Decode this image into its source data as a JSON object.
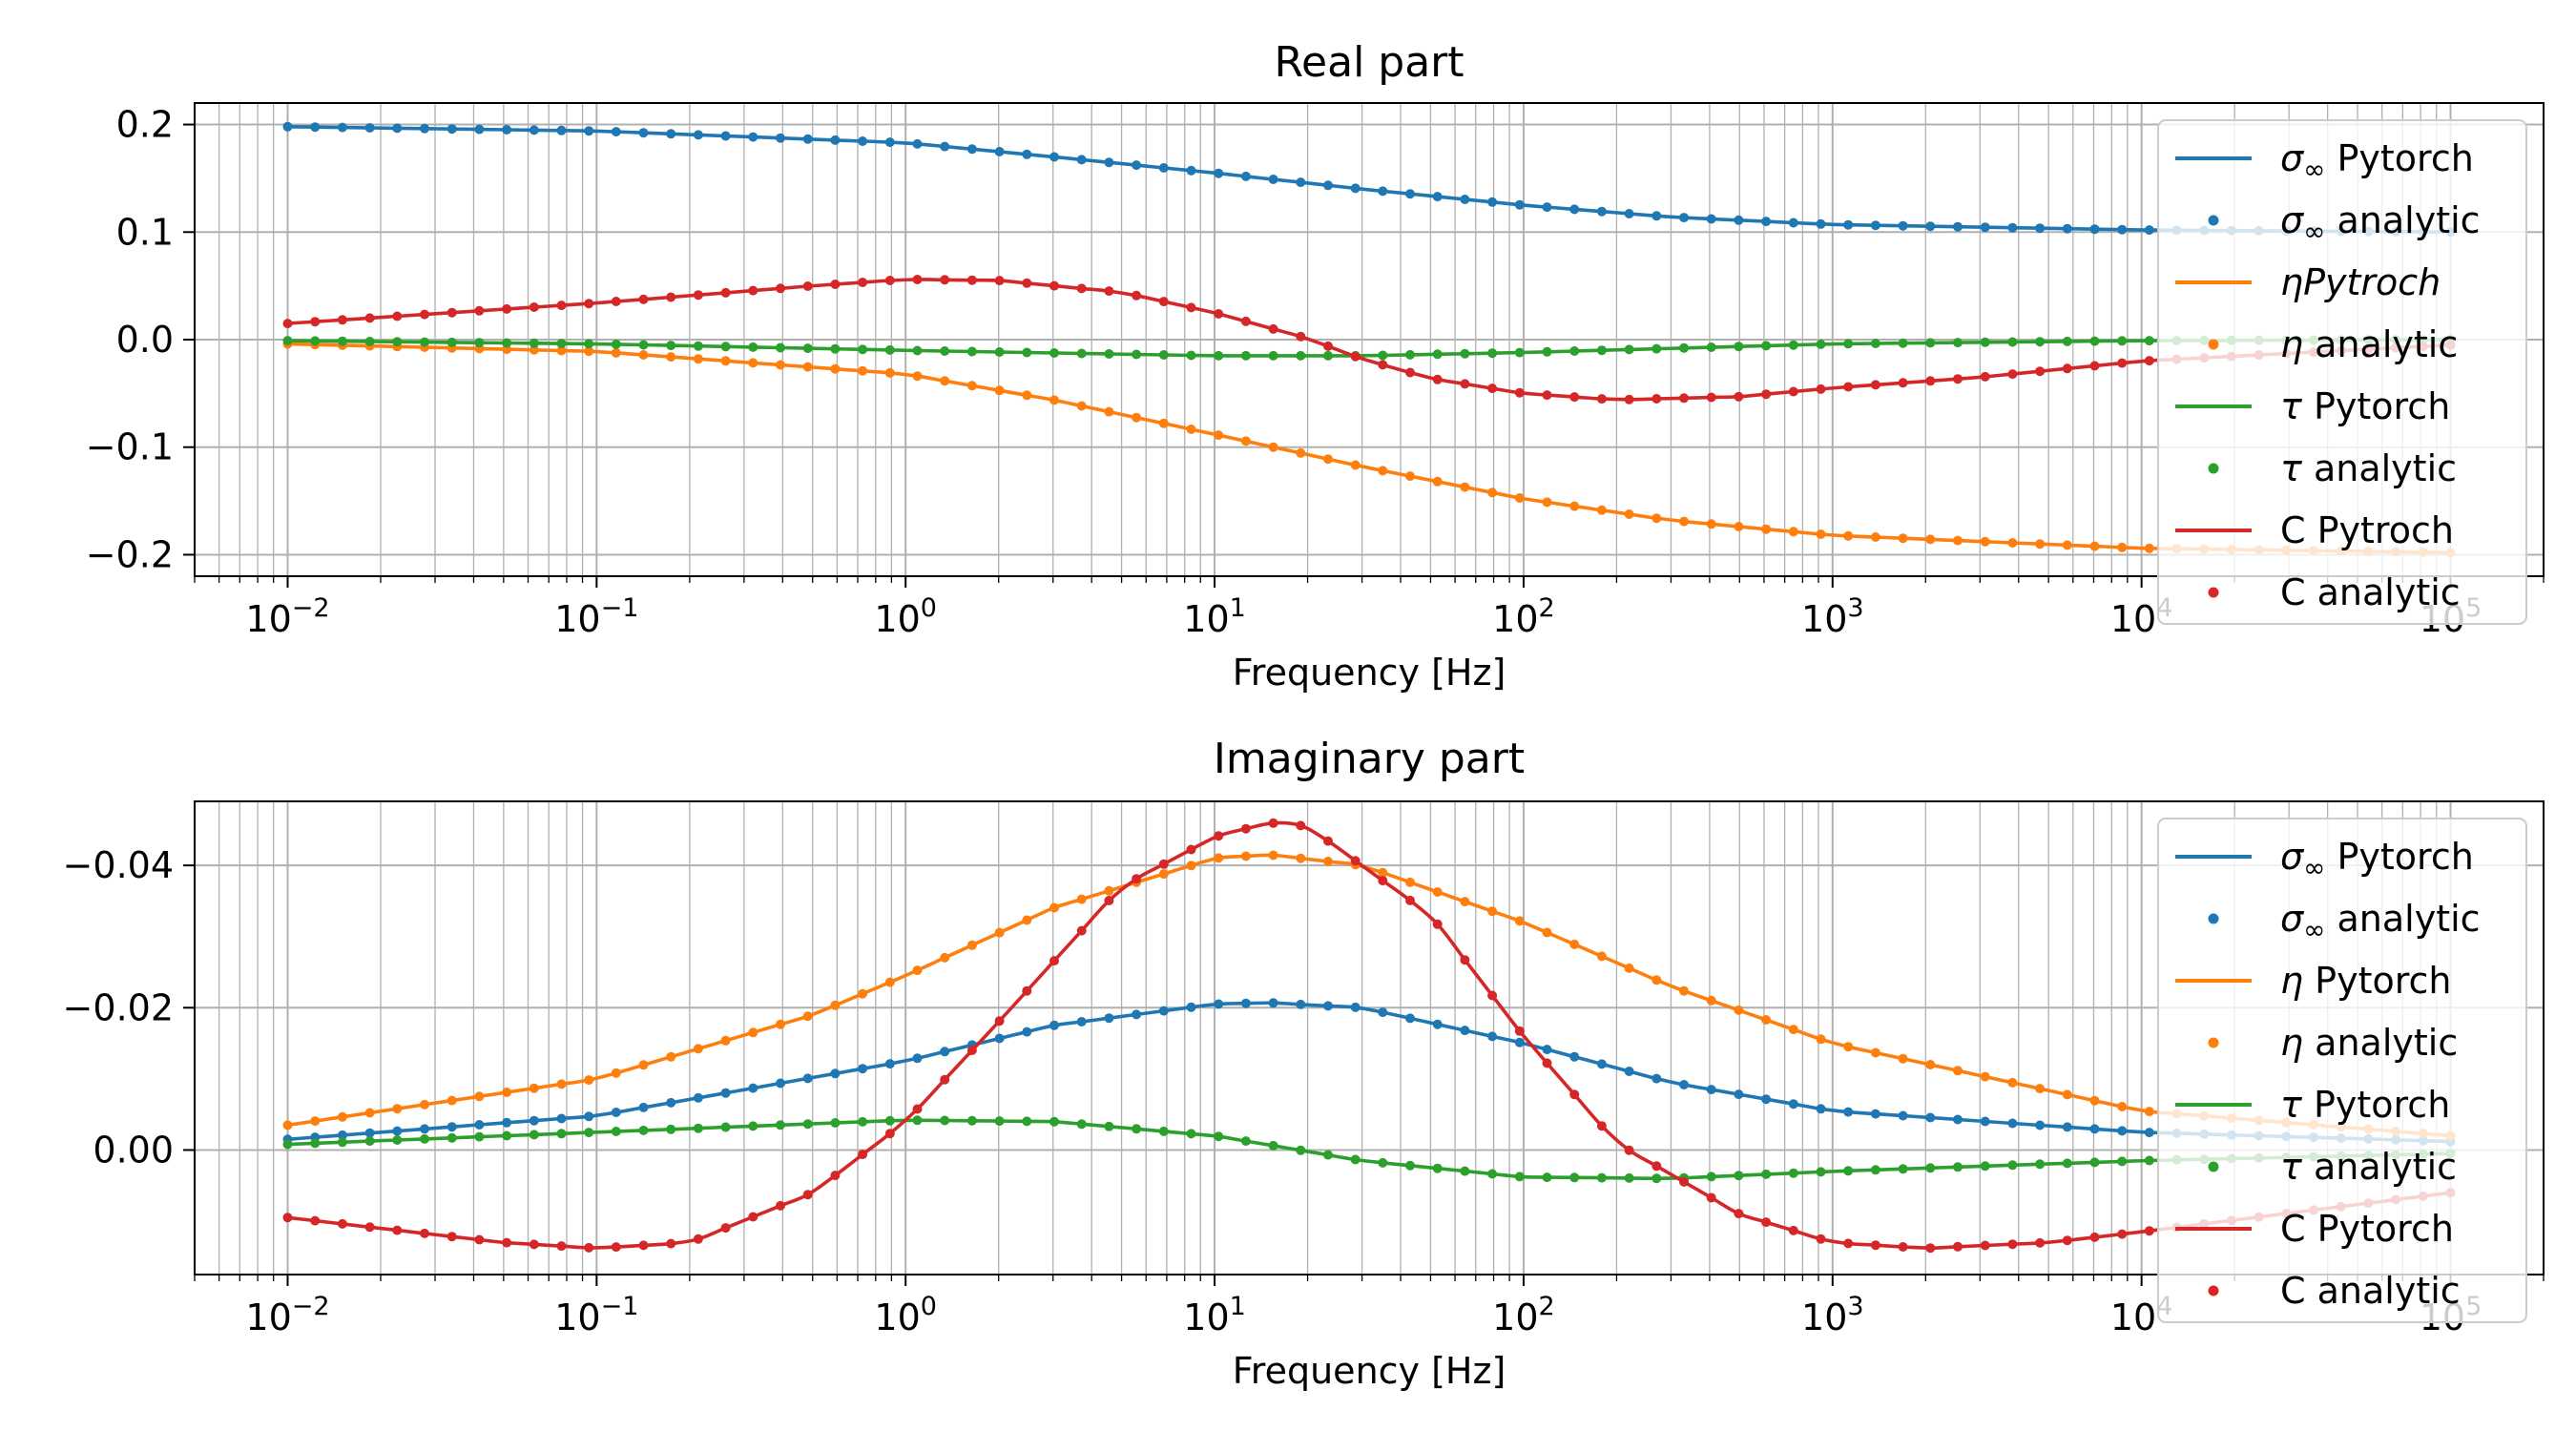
{
  "chart_data": [
    {
      "type": "line",
      "title": "Real part",
      "xlabel": "Frequency [Hz]",
      "ylabel": "",
      "xscale": "log",
      "xlim": [
        0.005,
        200000
      ],
      "ylim": [
        -0.22,
        0.22
      ],
      "x_ticks": [
        {
          "base": "10",
          "exp": "−2"
        },
        {
          "base": "10",
          "exp": "−1"
        },
        {
          "base": "10",
          "exp": "0"
        },
        {
          "base": "10",
          "exp": "1"
        },
        {
          "base": "10",
          "exp": "2"
        },
        {
          "base": "10",
          "exp": "3"
        },
        {
          "base": "10",
          "exp": "4"
        },
        {
          "base": "10",
          "exp": "5"
        }
      ],
      "y_ticks": [
        {
          "value": 0.2,
          "label": "0.2"
        },
        {
          "value": 0.1,
          "label": "0.1"
        },
        {
          "value": 0.0,
          "label": "0.0"
        },
        {
          "value": -0.1,
          "label": "−0.1"
        },
        {
          "value": -0.2,
          "label": "−0.2"
        }
      ],
      "grid": true,
      "legend_position": "right",
      "legend": [
        {
          "sym": "σ",
          "sub": "∞",
          "text": " Pytorch",
          "style": "line",
          "color": "#1f77b4"
        },
        {
          "sym": "σ",
          "sub": "∞",
          "text": " analytic",
          "style": "dot",
          "color": "#1f77b4"
        },
        {
          "sym": "ηPytroch",
          "sub": "",
          "text": "",
          "style": "line",
          "color": "#ff7f0e"
        },
        {
          "sym": "η",
          "sub": "",
          "text": " analytic",
          "style": "dot",
          "color": "#ff7f0e"
        },
        {
          "sym": "τ",
          "sub": "",
          "text": " Pytorch",
          "style": "line",
          "color": "#2ca02c"
        },
        {
          "sym": "τ",
          "sub": "",
          "text": " analytic",
          "style": "dot",
          "color": "#2ca02c"
        },
        {
          "sym": "",
          "sub": "",
          "text": "C Pytroch",
          "style": "line",
          "color": "#d62728"
        },
        {
          "sym": "",
          "sub": "",
          "text": "C analytic",
          "style": "dot",
          "color": "#d62728"
        }
      ],
      "series": [
        {
          "color": "#1f77b4",
          "x": [
            0.01,
            0.1,
            1,
            3,
            10,
            30,
            100,
            300,
            1000,
            10000,
            100000
          ],
          "y": [
            0.198,
            0.194,
            0.183,
            0.17,
            0.155,
            0.14,
            0.125,
            0.114,
            0.107,
            0.102,
            0.1
          ]
        },
        {
          "color": "#ff7f0e",
          "x": [
            0.01,
            0.1,
            1,
            3,
            10,
            30,
            100,
            300,
            1000,
            10000,
            100000
          ],
          "y": [
            -0.004,
            -0.011,
            -0.032,
            -0.056,
            -0.088,
            -0.118,
            -0.148,
            -0.168,
            -0.182,
            -0.194,
            -0.198
          ]
        },
        {
          "color": "#2ca02c",
          "x": [
            0.01,
            0.1,
            1,
            10,
            30,
            100,
            1000,
            10000,
            100000
          ],
          "y": [
            -0.001,
            -0.004,
            -0.01,
            -0.015,
            -0.015,
            -0.012,
            -0.004,
            -0.001,
            0.0
          ]
        },
        {
          "color": "#d62728",
          "x": [
            0.01,
            0.1,
            0.5,
            1,
            2,
            5,
            10,
            20,
            30,
            50,
            100,
            200,
            500,
            1000,
            3000,
            10000,
            100000
          ],
          "y": [
            0.015,
            0.034,
            0.05,
            0.056,
            0.055,
            0.044,
            0.025,
            0.001,
            -0.018,
            -0.036,
            -0.05,
            -0.056,
            -0.053,
            -0.045,
            -0.035,
            -0.02,
            -0.005
          ]
        }
      ]
    },
    {
      "type": "line",
      "title": "Imaginary part",
      "xlabel": "Frequency [Hz]",
      "ylabel": "",
      "xscale": "log",
      "xlim": [
        0.005,
        200000
      ],
      "ylim": [
        0.0175,
        -0.049
      ],
      "y_inverted": true,
      "x_ticks": [
        {
          "base": "10",
          "exp": "−2"
        },
        {
          "base": "10",
          "exp": "−1"
        },
        {
          "base": "10",
          "exp": "0"
        },
        {
          "base": "10",
          "exp": "1"
        },
        {
          "base": "10",
          "exp": "2"
        },
        {
          "base": "10",
          "exp": "3"
        },
        {
          "base": "10",
          "exp": "4"
        },
        {
          "base": "10",
          "exp": "5"
        }
      ],
      "y_ticks": [
        {
          "value": -0.04,
          "label": "−0.04"
        },
        {
          "value": -0.02,
          "label": "−0.02"
        },
        {
          "value": 0.0,
          "label": "0.00"
        }
      ],
      "grid": true,
      "legend_position": "right",
      "legend": [
        {
          "sym": "σ",
          "sub": "∞",
          "text": " Pytorch",
          "style": "line",
          "color": "#1f77b4"
        },
        {
          "sym": "σ",
          "sub": "∞",
          "text": " analytic",
          "style": "dot",
          "color": "#1f77b4"
        },
        {
          "sym": "η",
          "sub": "",
          "text": " Pytorch",
          "style": "line",
          "color": "#ff7f0e"
        },
        {
          "sym": "η",
          "sub": "",
          "text": " analytic",
          "style": "dot",
          "color": "#ff7f0e"
        },
        {
          "sym": "τ",
          "sub": "",
          "text": " Pytorch",
          "style": "line",
          "color": "#2ca02c"
        },
        {
          "sym": "τ",
          "sub": "",
          "text": " analytic",
          "style": "dot",
          "color": "#2ca02c"
        },
        {
          "sym": "",
          "sub": "",
          "text": "C Pytorch",
          "style": "line",
          "color": "#d62728"
        },
        {
          "sym": "",
          "sub": "",
          "text": "C analytic",
          "style": "dot",
          "color": "#d62728"
        }
      ],
      "series": [
        {
          "color": "#1f77b4",
          "x": [
            0.01,
            0.1,
            1,
            3,
            10,
            15,
            30,
            100,
            300,
            1000,
            10000,
            100000
          ],
          "y": [
            -0.0015,
            -0.0048,
            -0.0125,
            -0.0175,
            -0.0205,
            -0.0207,
            -0.02,
            -0.015,
            -0.0095,
            -0.0055,
            -0.0025,
            -0.0012
          ]
        },
        {
          "color": "#ff7f0e",
          "x": [
            0.01,
            0.1,
            0.5,
            1,
            3,
            10,
            15,
            30,
            100,
            300,
            1000,
            10000,
            100000
          ],
          "y": [
            -0.0035,
            -0.01,
            -0.019,
            -0.0245,
            -0.034,
            -0.041,
            -0.0415,
            -0.04,
            -0.032,
            -0.023,
            -0.015,
            -0.0055,
            -0.002
          ]
        },
        {
          "color": "#2ca02c",
          "x": [
            0.01,
            0.1,
            1,
            3,
            10,
            30,
            100,
            300,
            1000,
            10000,
            100000
          ],
          "y": [
            -0.0008,
            -0.0025,
            -0.0042,
            -0.004,
            -0.002,
            0.0015,
            0.0038,
            0.004,
            0.003,
            0.0015,
            0.0005
          ]
        },
        {
          "color": "#d62728",
          "x": [
            0.01,
            0.05,
            0.1,
            0.2,
            0.5,
            1,
            2,
            5,
            10,
            15,
            20,
            50,
            100,
            200,
            500,
            1000,
            2000,
            5000,
            10000,
            100000
          ],
          "y": [
            0.0095,
            0.013,
            0.0138,
            0.013,
            0.006,
            -0.004,
            -0.018,
            -0.037,
            -0.044,
            -0.046,
            -0.0455,
            -0.033,
            -0.016,
            -0.001,
            0.009,
            0.013,
            0.0138,
            0.013,
            0.0115,
            0.006
          ]
        }
      ]
    }
  ]
}
